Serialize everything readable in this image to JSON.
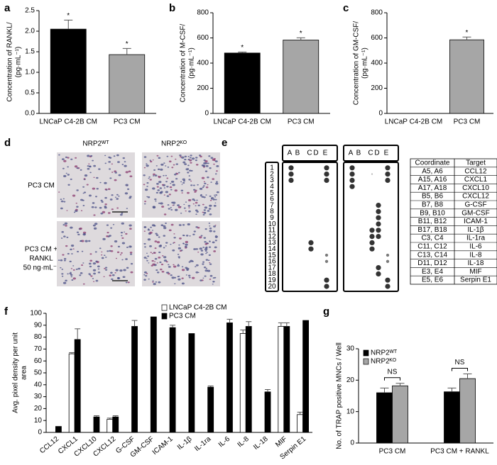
{
  "panel_labels": [
    "a",
    "b",
    "c",
    "d",
    "e",
    "f",
    "g"
  ],
  "chart_data": [
    {
      "type": "bar",
      "ylabel": [
        "Concentration of RANKL/",
        "(pg·mL⁻¹)"
      ],
      "categories": [
        "LNCaP C4-2B CM",
        "PC3 CM"
      ],
      "values": [
        2.05,
        1.43
      ],
      "errors": [
        0.22,
        0.15
      ],
      "colors": [
        "#000000",
        "#a6a6a6"
      ],
      "annotations": [
        "*",
        "*"
      ],
      "ylim": [
        0,
        2.5
      ],
      "yticks": [
        {
          "value": 0,
          "label": "0.0"
        },
        0.5,
        {
          "value": 1,
          "label": "1.0"
        },
        1.5,
        {
          "value": 2,
          "label": "2.0"
        },
        2.5
      ]
    },
    {
      "type": "bar",
      "ylabel": [
        "Concentration of M-CSF/",
        "(pg·mL⁻¹)"
      ],
      "categories": [
        "LNCaP C4-2B CM",
        "PC3 CM"
      ],
      "values": [
        480,
        583
      ],
      "errors": [
        8,
        18
      ],
      "colors": [
        "#000000",
        "#a6a6a6"
      ],
      "annotations": [
        "*",
        "*"
      ],
      "ylim": [
        0,
        800
      ],
      "yticks": [
        0,
        200,
        400,
        600,
        800
      ]
    },
    {
      "type": "bar",
      "ylabel": [
        "Concentration of GM-CSF/",
        "(pg·mL⁻¹)"
      ],
      "categories": [
        "LNCaP C4-2B CM",
        "PC3 CM"
      ],
      "values": [
        null,
        585
      ],
      "errors": [
        null,
        22
      ],
      "colors": [
        "#000000",
        "#a6a6a6"
      ],
      "annotations": [
        null,
        "*"
      ],
      "ylim": [
        0,
        800
      ],
      "yticks": [
        0,
        200,
        400,
        600,
        800
      ]
    },
    {
      "type": "bar",
      "ylabel": [
        "Avg. pixel density per unit",
        "area"
      ],
      "categories": [
        "CCL12",
        "CXCL1",
        "CXCL10",
        "CXCL12",
        "G-CSF",
        "GM-CSF",
        "ICAM-1",
        "IL-1β",
        "IL-1ra",
        "IL-6",
        "IL-8",
        "IL-18",
        "MIF",
        "Serpin E1"
      ],
      "series": [
        {
          "name": "LNCaP C4-2B CM",
          "color": "#ffffff",
          "values": [
            0,
            66,
            0,
            11,
            0,
            0,
            0,
            0,
            0,
            0,
            83,
            0,
            89,
            15
          ],
          "errors": [
            null,
            1,
            null,
            1,
            null,
            null,
            null,
            null,
            null,
            null,
            3,
            null,
            3,
            2
          ]
        },
        {
          "name": "PC3 CM",
          "color": "#000000",
          "values": [
            5,
            78,
            13,
            13,
            89,
            97,
            88,
            83,
            38,
            92,
            89,
            34,
            89,
            94
          ],
          "errors": [
            null,
            9,
            1,
            1,
            5,
            null,
            2,
            null,
            1,
            3,
            4,
            2,
            3,
            null
          ]
        }
      ],
      "ylim": [
        0,
        100
      ],
      "yticks": [
        0,
        10,
        20,
        30,
        40,
        50,
        60,
        70,
        80,
        90,
        100
      ]
    },
    {
      "type": "bar",
      "ylabel": [
        "No. of TRAP positive MNCs / Well"
      ],
      "categories": [
        "PC3 CM",
        "PC3 CM + RANKL"
      ],
      "series": [
        {
          "name": "NRP2ᵂᵀ",
          "color": "#000000",
          "values": [
            16,
            16.3
          ],
          "errors": [
            1.5,
            1.2
          ]
        },
        {
          "name": "NRP2ᴷᴼ",
          "color": "#a6a6a6",
          "values": [
            18.2,
            20.5
          ],
          "errors": [
            0.8,
            1.5
          ]
        }
      ],
      "bracket_annotations": [
        "NS",
        "NS"
      ],
      "ylim": [
        0,
        30
      ],
      "yticks": [
        0,
        10,
        20,
        30
      ]
    }
  ],
  "micrographs": {
    "columns": [
      "NRP2ᵂᵀ",
      "NRP2ᴷᴼ"
    ],
    "rows": [
      [
        "PC3 CM"
      ],
      [
        "PC3 CM +",
        "RANKL",
        "50 ng·mL⁻¹"
      ]
    ]
  },
  "array": {
    "column_letters": [
      "A",
      "B",
      "C",
      "D",
      "E"
    ],
    "row_numbers": [
      1,
      2,
      3,
      4,
      5,
      6,
      7,
      8,
      9,
      10,
      11,
      12,
      13,
      14,
      15,
      16,
      17,
      18,
      19,
      20
    ],
    "table": {
      "header": [
        "Coordinate",
        "Target"
      ],
      "rows": [
        [
          "A5, A6",
          "CCL12"
        ],
        [
          "A15, A16",
          "CXCL1"
        ],
        [
          "A17, A18",
          "CXCL10"
        ],
        [
          "B5, B6",
          "CXCL12"
        ],
        [
          "B7, B8",
          "G-CSF"
        ],
        [
          "B9, B10",
          "GM-CSF"
        ],
        [
          "B11, B12",
          "ICAM-1"
        ],
        [
          "B17, B18",
          "IL-1β"
        ],
        [
          "C3, C4",
          "IL-1ra"
        ],
        [
          "C11, C12",
          "IL-6"
        ],
        [
          "C13, C14",
          "IL-8"
        ],
        [
          "D11, D12",
          "IL-18"
        ],
        [
          "E3, E4",
          "MIF"
        ],
        [
          "E5, E6",
          "Serpin E1"
        ]
      ]
    }
  }
}
